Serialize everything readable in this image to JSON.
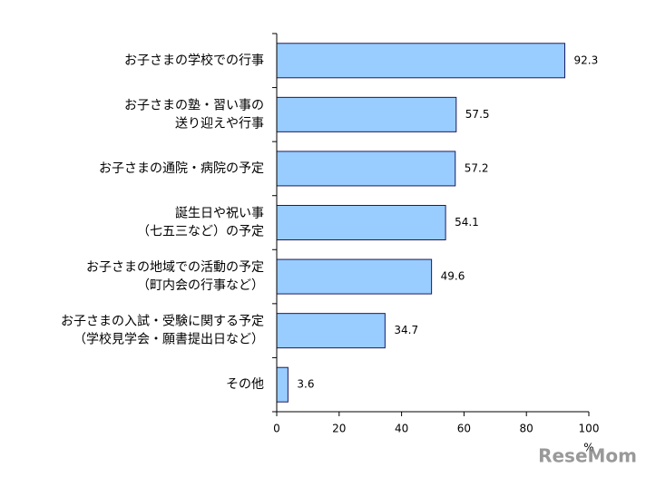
{
  "chart_data": {
    "type": "hbar",
    "categories": [
      "お子さまの学校での行事",
      "お子さまの塾・習い事の\n送り迎えや行事",
      "お子さまの通院・病院の予定",
      "誕生日や祝い事\n（七五三など）の予定",
      "お子さまの地域での活動の予定\n（町内会の行事など）",
      "お子さまの入試・受験に関する予定\n（学校見学会・願書提出日など）",
      "その他"
    ],
    "values": [
      92.3,
      57.5,
      57.2,
      54.1,
      49.6,
      34.7,
      3.6
    ],
    "color": "#99ccff",
    "xlim": [
      0,
      100
    ],
    "xticks": [
      0,
      20,
      40,
      60,
      80,
      100
    ],
    "x_unit": "%",
    "watermark": "ReseMom"
  }
}
